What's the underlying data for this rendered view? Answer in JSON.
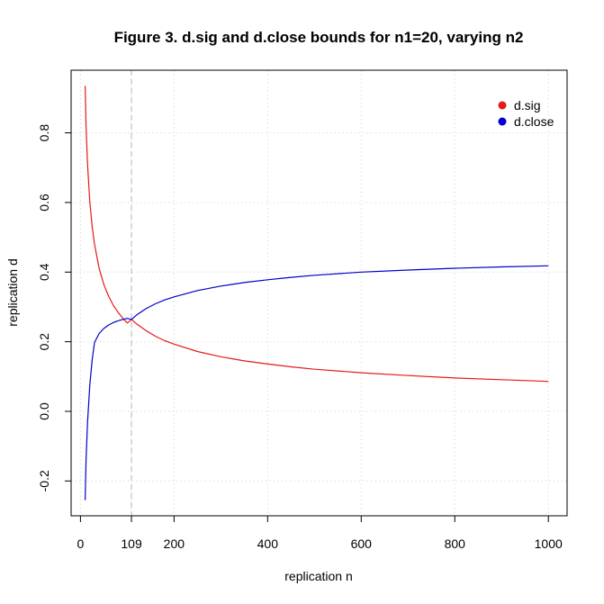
{
  "chart_data": {
    "type": "line",
    "title": "Figure 3. d.sig and d.close bounds for n1=20, varying n2",
    "xlabel": "replication n",
    "ylabel": "replication d",
    "xlim": [
      -20,
      1040
    ],
    "ylim": [
      -0.3,
      0.98
    ],
    "x_ticks": [
      0,
      109,
      200,
      400,
      600,
      800,
      1000
    ],
    "x_tick_labels": [
      "0",
      "109",
      "200",
      "400",
      "600",
      "800",
      "1000"
    ],
    "y_ticks": [
      -0.2,
      0.0,
      0.2,
      0.4,
      0.6,
      0.8
    ],
    "y_tick_labels": [
      "-0.2",
      "0.0",
      "0.2",
      "0.4",
      "0.6",
      "0.8"
    ],
    "grid": true,
    "vline": {
      "x": 109,
      "style": "dashed",
      "color": "#cccccc"
    },
    "legend_position": "top-right",
    "x": [
      10,
      12,
      15,
      20,
      25,
      30,
      40,
      50,
      60,
      70,
      80,
      90,
      100,
      109,
      120,
      140,
      160,
      180,
      200,
      250,
      300,
      350,
      400,
      450,
      500,
      600,
      700,
      800,
      900,
      1000
    ],
    "series": [
      {
        "name": "d.sig",
        "color": "#e41a1c",
        "values": [
          0.935,
          0.818,
          0.713,
          0.601,
          0.53,
          0.48,
          0.41,
          0.364,
          0.331,
          0.305,
          0.285,
          0.268,
          0.254,
          0.264,
          0.251,
          0.232,
          0.216,
          0.203,
          0.193,
          0.172,
          0.157,
          0.145,
          0.136,
          0.128,
          0.121,
          0.111,
          0.103,
          0.096,
          0.091,
          0.086
        ]
      },
      {
        "name": "d.close",
        "color": "#0000cc",
        "values": [
          -0.255,
          -0.14,
          -0.034,
          0.077,
          0.148,
          0.198,
          0.224,
          0.238,
          0.248,
          0.255,
          0.26,
          0.264,
          0.267,
          0.264,
          0.277,
          0.295,
          0.309,
          0.32,
          0.329,
          0.347,
          0.36,
          0.37,
          0.378,
          0.385,
          0.391,
          0.4,
          0.406,
          0.411,
          0.415,
          0.418
        ]
      }
    ]
  }
}
